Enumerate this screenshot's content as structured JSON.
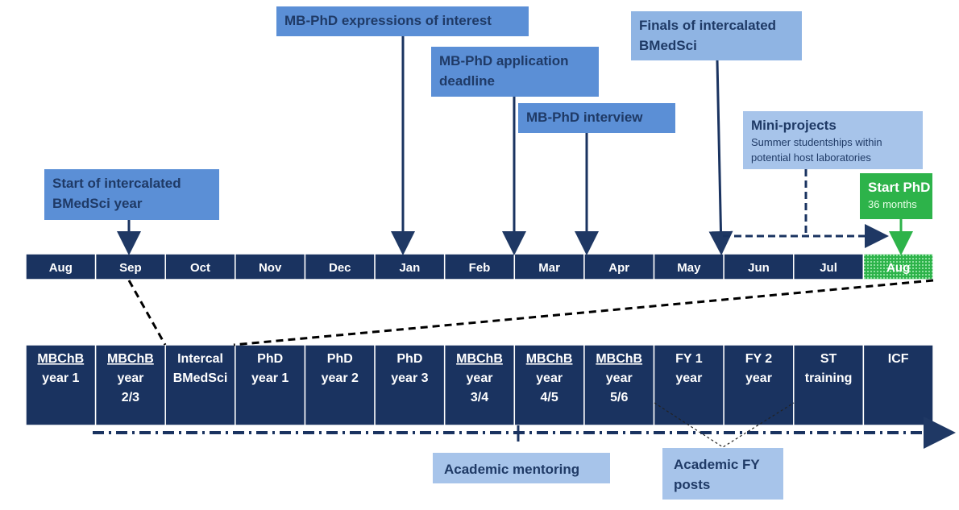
{
  "months": [
    "Aug",
    "Sep",
    "Oct",
    "Nov",
    "Dec",
    "Jan",
    "Feb",
    "Mar",
    "Apr",
    "May",
    "Jun",
    "Jul",
    "Aug"
  ],
  "callouts": [
    {
      "title": [
        "Start of intercalated",
        "BMedSci year"
      ]
    },
    {
      "title": [
        "MB-PhD expressions of interest"
      ]
    },
    {
      "title": [
        "MB-PhD application",
        "deadline"
      ]
    },
    {
      "title": [
        "MB-PhD interview"
      ]
    },
    {
      "title": [
        "Finals of intercalated",
        "BMedSci"
      ]
    },
    {
      "title": [
        "Mini-projects"
      ],
      "subtitle": [
        "Summer studentships  within",
        "potential host laboratories"
      ]
    },
    {
      "title": [
        "Start PhD"
      ],
      "subtitle": [
        "36 months"
      ]
    }
  ],
  "stages": [
    {
      "lines": [
        "MBChB",
        "year 1"
      ]
    },
    {
      "lines": [
        "MBChB",
        "year",
        "2/3"
      ]
    },
    {
      "lines": [
        "Intercal",
        "BMedSci"
      ]
    },
    {
      "lines": [
        "PhD",
        "year 1"
      ]
    },
    {
      "lines": [
        "PhD",
        "year 2"
      ]
    },
    {
      "lines": [
        "PhD",
        "year 3"
      ]
    },
    {
      "lines": [
        "MBChB",
        "year",
        "3/4"
      ]
    },
    {
      "lines": [
        "MBChB",
        "year",
        "4/5"
      ]
    },
    {
      "lines": [
        "MBChB",
        "year",
        "5/6"
      ]
    },
    {
      "lines": [
        "FY 1",
        "year"
      ]
    },
    {
      "lines": [
        "FY 2",
        "year"
      ]
    },
    {
      "lines": [
        "ST",
        "training"
      ]
    },
    {
      "lines": [
        "ICF"
      ]
    }
  ],
  "notes": [
    {
      "lines": [
        "Academic mentoring"
      ]
    },
    {
      "lines": [
        "Academic FY",
        "posts"
      ]
    }
  ]
}
